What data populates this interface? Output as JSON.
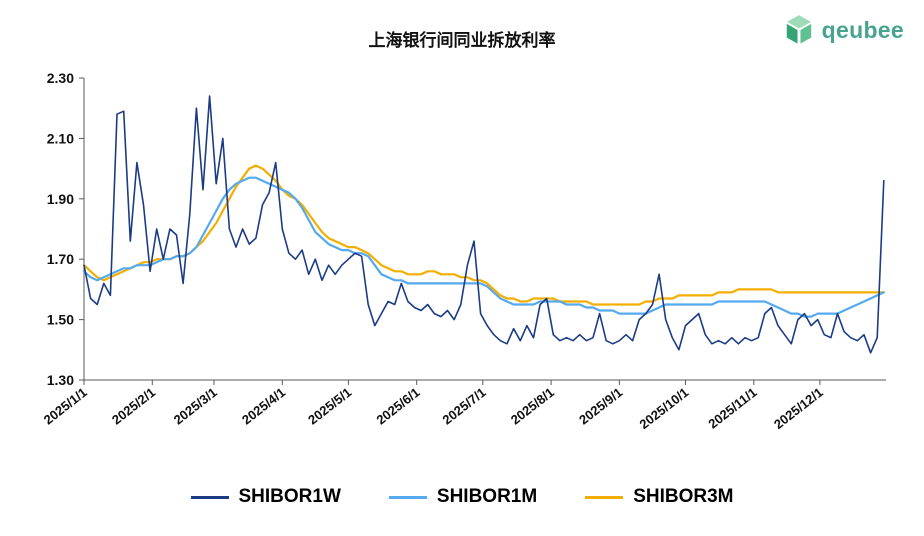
{
  "title": "上海银行间同业拆放利率",
  "logo": {
    "text": "qeubee",
    "text_color": "#4aa391",
    "icon": "cube-logo-icon",
    "icon_colors": [
      "#9edbb7",
      "#35a474",
      "#5fc093"
    ]
  },
  "chart_data": {
    "type": "line",
    "title": "上海银行间同业拆放利率",
    "xlabel": "",
    "ylabel": "",
    "x_unit": "day_of_year_2025",
    "xlim": [
      0,
      364
    ],
    "ylim": [
      1.3,
      2.3
    ],
    "y_ticks": [
      1.3,
      1.5,
      1.7,
      1.9,
      2.1,
      2.3
    ],
    "grid": false,
    "legend_position": "bottom",
    "x_ticks": [
      {
        "day": 0,
        "label": "2025/1/1"
      },
      {
        "day": 31,
        "label": "2025/2/1"
      },
      {
        "day": 59,
        "label": "2025/3/1"
      },
      {
        "day": 90,
        "label": "2025/4/1"
      },
      {
        "day": 120,
        "label": "2025/5/1"
      },
      {
        "day": 151,
        "label": "2025/6/1"
      },
      {
        "day": 181,
        "label": "2025/7/1"
      },
      {
        "day": 212,
        "label": "2025/8/1"
      },
      {
        "day": 243,
        "label": "2025/9/1"
      },
      {
        "day": 273,
        "label": "2025/10/1"
      },
      {
        "day": 304,
        "label": "2025/11/1"
      },
      {
        "day": 334,
        "label": "2025/12/1"
      }
    ],
    "x": [
      0,
      3,
      6,
      9,
      12,
      15,
      18,
      21,
      24,
      27,
      30,
      33,
      36,
      39,
      42,
      45,
      48,
      51,
      54,
      57,
      60,
      63,
      66,
      69,
      72,
      75,
      78,
      81,
      84,
      87,
      90,
      93,
      96,
      99,
      102,
      105,
      108,
      111,
      114,
      117,
      120,
      123,
      126,
      129,
      132,
      135,
      138,
      141,
      144,
      147,
      150,
      153,
      156,
      159,
      162,
      165,
      168,
      171,
      174,
      177,
      180,
      183,
      186,
      189,
      192,
      195,
      198,
      201,
      204,
      207,
      210,
      213,
      216,
      219,
      222,
      225,
      228,
      231,
      234,
      237,
      240,
      243,
      246,
      249,
      252,
      255,
      258,
      261,
      264,
      267,
      270,
      273,
      276,
      279,
      282,
      285,
      288,
      291,
      294,
      297,
      300,
      303,
      306,
      309,
      312,
      315,
      318,
      321,
      324,
      327,
      330,
      333,
      336,
      339,
      342,
      345,
      348,
      351,
      354,
      357,
      360,
      363
    ],
    "series": [
      {
        "name": "SHIBOR1W",
        "color": "#1b3c85",
        "width": 1.6,
        "values": [
          1.68,
          1.57,
          1.55,
          1.62,
          1.58,
          2.18,
          2.19,
          1.76,
          2.02,
          1.88,
          1.66,
          1.8,
          1.7,
          1.8,
          1.78,
          1.62,
          1.85,
          2.2,
          1.93,
          2.24,
          1.95,
          2.1,
          1.8,
          1.74,
          1.8,
          1.75,
          1.77,
          1.88,
          1.92,
          2.02,
          1.8,
          1.72,
          1.7,
          1.73,
          1.65,
          1.7,
          1.63,
          1.68,
          1.65,
          1.68,
          1.7,
          1.72,
          1.71,
          1.55,
          1.48,
          1.52,
          1.56,
          1.55,
          1.62,
          1.56,
          1.54,
          1.53,
          1.55,
          1.52,
          1.51,
          1.53,
          1.5,
          1.55,
          1.68,
          1.76,
          1.52,
          1.48,
          1.45,
          1.43,
          1.42,
          1.47,
          1.43,
          1.48,
          1.44,
          1.55,
          1.57,
          1.45,
          1.43,
          1.44,
          1.43,
          1.45,
          1.43,
          1.44,
          1.52,
          1.43,
          1.42,
          1.43,
          1.45,
          1.43,
          1.5,
          1.52,
          1.55,
          1.65,
          1.5,
          1.44,
          1.4,
          1.48,
          1.5,
          1.52,
          1.45,
          1.42,
          1.43,
          1.42,
          1.44,
          1.42,
          1.44,
          1.43,
          1.44,
          1.52,
          1.54,
          1.48,
          1.45,
          1.42,
          1.5,
          1.52,
          1.48,
          1.5,
          1.45,
          1.44,
          1.52,
          1.46,
          1.44,
          1.43,
          1.45,
          1.39,
          1.44,
          1.96
        ]
      },
      {
        "name": "SHIBOR1M",
        "color": "#55a9ee",
        "width": 2.2,
        "values": [
          1.66,
          1.64,
          1.63,
          1.64,
          1.65,
          1.66,
          1.67,
          1.67,
          1.68,
          1.68,
          1.68,
          1.69,
          1.7,
          1.7,
          1.71,
          1.71,
          1.72,
          1.74,
          1.78,
          1.82,
          1.86,
          1.9,
          1.93,
          1.95,
          1.96,
          1.97,
          1.97,
          1.96,
          1.95,
          1.94,
          1.93,
          1.92,
          1.9,
          1.87,
          1.83,
          1.79,
          1.77,
          1.75,
          1.74,
          1.73,
          1.73,
          1.72,
          1.72,
          1.71,
          1.68,
          1.65,
          1.64,
          1.63,
          1.63,
          1.62,
          1.62,
          1.62,
          1.62,
          1.62,
          1.62,
          1.62,
          1.62,
          1.62,
          1.62,
          1.62,
          1.62,
          1.61,
          1.59,
          1.57,
          1.56,
          1.55,
          1.55,
          1.55,
          1.55,
          1.56,
          1.56,
          1.56,
          1.56,
          1.55,
          1.55,
          1.55,
          1.54,
          1.54,
          1.53,
          1.53,
          1.53,
          1.52,
          1.52,
          1.52,
          1.52,
          1.52,
          1.53,
          1.54,
          1.55,
          1.55,
          1.55,
          1.55,
          1.55,
          1.55,
          1.55,
          1.55,
          1.56,
          1.56,
          1.56,
          1.56,
          1.56,
          1.56,
          1.56,
          1.56,
          1.55,
          1.54,
          1.53,
          1.52,
          1.52,
          1.51,
          1.51,
          1.52,
          1.52,
          1.52,
          1.52,
          1.53,
          1.54,
          1.55,
          1.56,
          1.57,
          1.58,
          1.59
        ]
      },
      {
        "name": "SHIBOR3M",
        "color": "#f3ae00",
        "width": 2.2,
        "values": [
          1.68,
          1.66,
          1.64,
          1.63,
          1.64,
          1.65,
          1.66,
          1.67,
          1.68,
          1.69,
          1.69,
          1.7,
          1.7,
          1.7,
          1.71,
          1.71,
          1.72,
          1.74,
          1.76,
          1.79,
          1.82,
          1.86,
          1.9,
          1.94,
          1.97,
          2.0,
          2.01,
          2.0,
          1.98,
          1.96,
          1.93,
          1.91,
          1.9,
          1.88,
          1.85,
          1.82,
          1.79,
          1.77,
          1.76,
          1.75,
          1.74,
          1.74,
          1.73,
          1.72,
          1.7,
          1.68,
          1.67,
          1.66,
          1.66,
          1.65,
          1.65,
          1.65,
          1.66,
          1.66,
          1.65,
          1.65,
          1.65,
          1.64,
          1.64,
          1.63,
          1.63,
          1.62,
          1.6,
          1.58,
          1.57,
          1.57,
          1.56,
          1.56,
          1.57,
          1.57,
          1.57,
          1.57,
          1.56,
          1.56,
          1.56,
          1.56,
          1.56,
          1.55,
          1.55,
          1.55,
          1.55,
          1.55,
          1.55,
          1.55,
          1.55,
          1.56,
          1.56,
          1.57,
          1.57,
          1.57,
          1.58,
          1.58,
          1.58,
          1.58,
          1.58,
          1.58,
          1.59,
          1.59,
          1.59,
          1.6,
          1.6,
          1.6,
          1.6,
          1.6,
          1.6,
          1.59,
          1.59,
          1.59,
          1.59,
          1.59,
          1.59,
          1.59,
          1.59,
          1.59,
          1.59,
          1.59,
          1.59,
          1.59,
          1.59,
          1.59,
          1.59,
          1.59
        ]
      }
    ]
  }
}
